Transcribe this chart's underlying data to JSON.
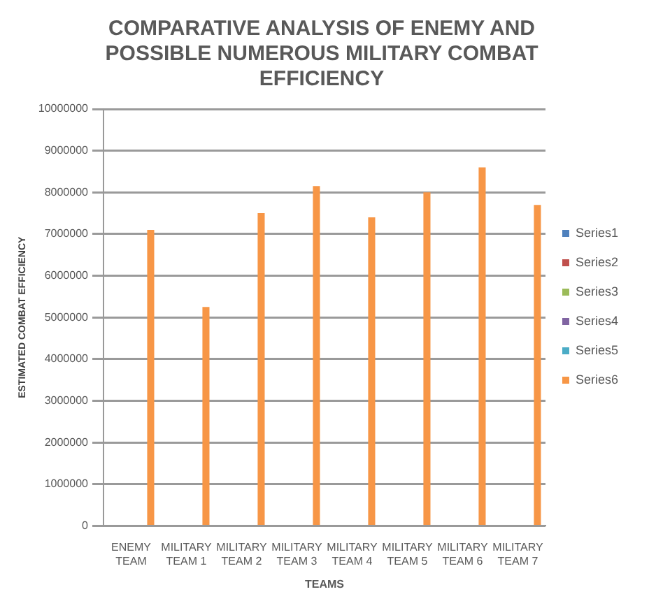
{
  "chart_data": {
    "type": "bar",
    "title": "COMPARATIVE ANALYSIS OF ENEMY AND POSSIBLE NUMEROUS MILITARY COMBAT EFFICIENCY",
    "xlabel": "TEAMS",
    "ylabel": "ESTIMATED COMBAT EFFICIENCY",
    "categories": [
      "ENEMY TEAM",
      "MILITARY TEAM 1",
      "MILITARY TEAM 2",
      "MILITARY TEAM 3",
      "MILITARY TEAM 4",
      "MILITARY TEAM 5",
      "MILITARY TEAM 6",
      "MILITARY TEAM 7"
    ],
    "series": [
      {
        "name": "Series1",
        "color": "#4f81bd",
        "values": [
          null,
          null,
          null,
          null,
          null,
          null,
          null,
          null
        ]
      },
      {
        "name": "Series2",
        "color": "#c0504d",
        "values": [
          null,
          null,
          null,
          null,
          null,
          null,
          null,
          null
        ]
      },
      {
        "name": "Series3",
        "color": "#9bbb59",
        "values": [
          null,
          null,
          null,
          null,
          null,
          null,
          null,
          null
        ]
      },
      {
        "name": "Series4",
        "color": "#8064a2",
        "values": [
          null,
          null,
          null,
          null,
          null,
          null,
          null,
          null
        ]
      },
      {
        "name": "Series5",
        "color": "#4bacc6",
        "values": [
          null,
          null,
          null,
          null,
          null,
          null,
          null,
          null
        ]
      },
      {
        "name": "Series6",
        "color": "#f79646",
        "values": [
          7100000,
          5250000,
          7500000,
          8150000,
          7400000,
          8000000,
          8600000,
          7700000
        ]
      }
    ],
    "ylim": [
      0,
      10000000
    ],
    "yticks": [
      0,
      1000000,
      2000000,
      3000000,
      4000000,
      5000000,
      6000000,
      7000000,
      8000000,
      9000000,
      10000000
    ],
    "grid": "y",
    "legend": "right"
  }
}
